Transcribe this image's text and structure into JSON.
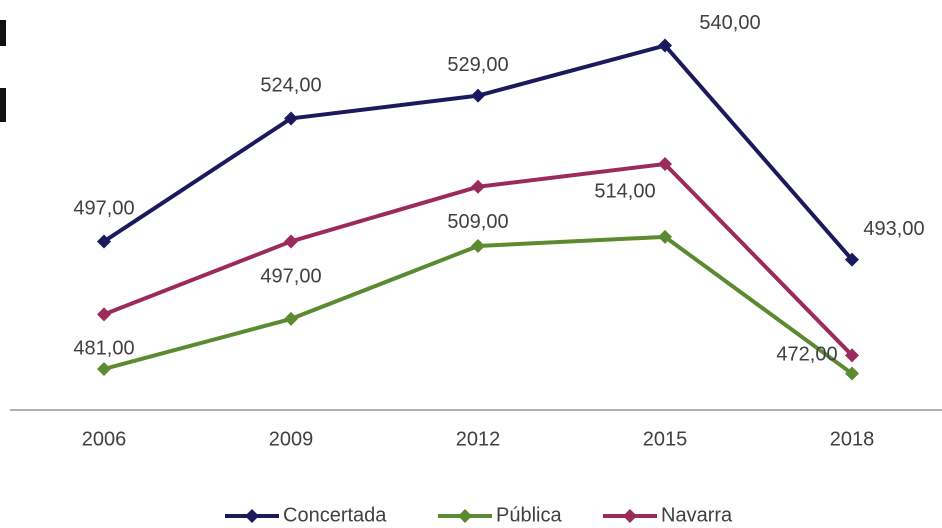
{
  "chart_data": {
    "type": "line",
    "categories": [
      "2006",
      "2009",
      "2012",
      "2015",
      "2018"
    ],
    "series": [
      {
        "name": "Concertada",
        "color": "#1c1a5c",
        "values": [
          497,
          524,
          529,
          540,
          493
        ],
        "value_labels": [
          "497,00",
          "524,00",
          "529,00",
          "540,00",
          "493,00"
        ]
      },
      {
        "name": "Pública",
        "color": "#5b8a30",
        "values": [
          469,
          480,
          496,
          498,
          468
        ]
      },
      {
        "name": "Navarra",
        "color": "#9c2b5c",
        "values": [
          481,
          497,
          509,
          514,
          472
        ],
        "value_labels": [
          "481,00",
          "497,00",
          "509,00",
          "514,00",
          "472,00"
        ]
      }
    ],
    "ylim": [
      460,
      550
    ],
    "legend": "bottom"
  }
}
